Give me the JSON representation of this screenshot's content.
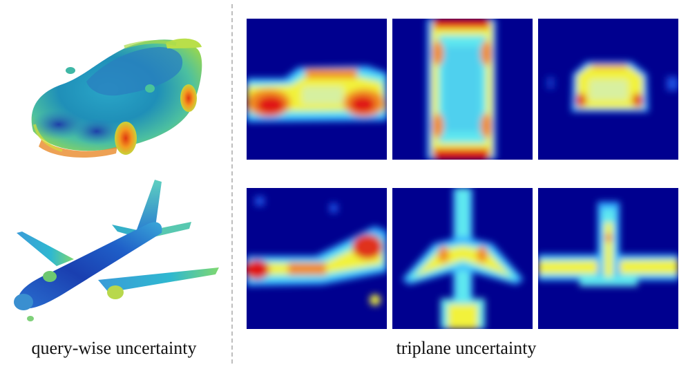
{
  "figure": {
    "caption_left": "query-wise uncertainty",
    "caption_right": "triplane uncertainty"
  },
  "colormap": {
    "low": "#00008f",
    "mid_low": "#1aa0ff",
    "mid": "#5ee8f0",
    "mid_high": "#f2f23a",
    "high": "#e01818"
  },
  "panels": {
    "car_render": "car-render",
    "plane_render": "airplane-render",
    "car_triplane": [
      "car-triplane-xy",
      "car-triplane-xz",
      "car-triplane-yz"
    ],
    "plane_triplane": [
      "airplane-triplane-xy",
      "airplane-triplane-xz",
      "airplane-triplane-yz"
    ]
  }
}
